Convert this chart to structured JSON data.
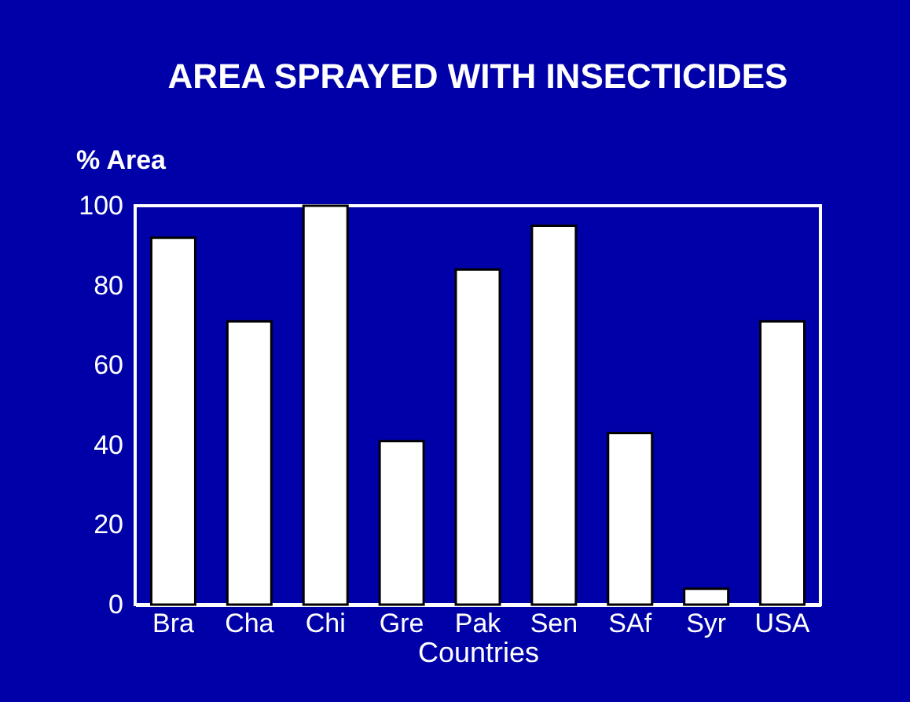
{
  "chart_data": {
    "type": "bar",
    "title": "AREA SPRAYED WITH INSECTICIDES",
    "ylabel": "% Area",
    "xlabel": "Countries",
    "categories": [
      "Bra",
      "Cha",
      "Chi",
      "Gre",
      "Pak",
      "Sen",
      "SAf",
      "Syr",
      "USA"
    ],
    "values": [
      92,
      71,
      100,
      41,
      84,
      95,
      43,
      4,
      71
    ],
    "color": "#ffffff",
    "ylim": [
      0,
      100
    ],
    "yticks": [
      0,
      20,
      40,
      60,
      80,
      100
    ],
    "grid": false
  }
}
